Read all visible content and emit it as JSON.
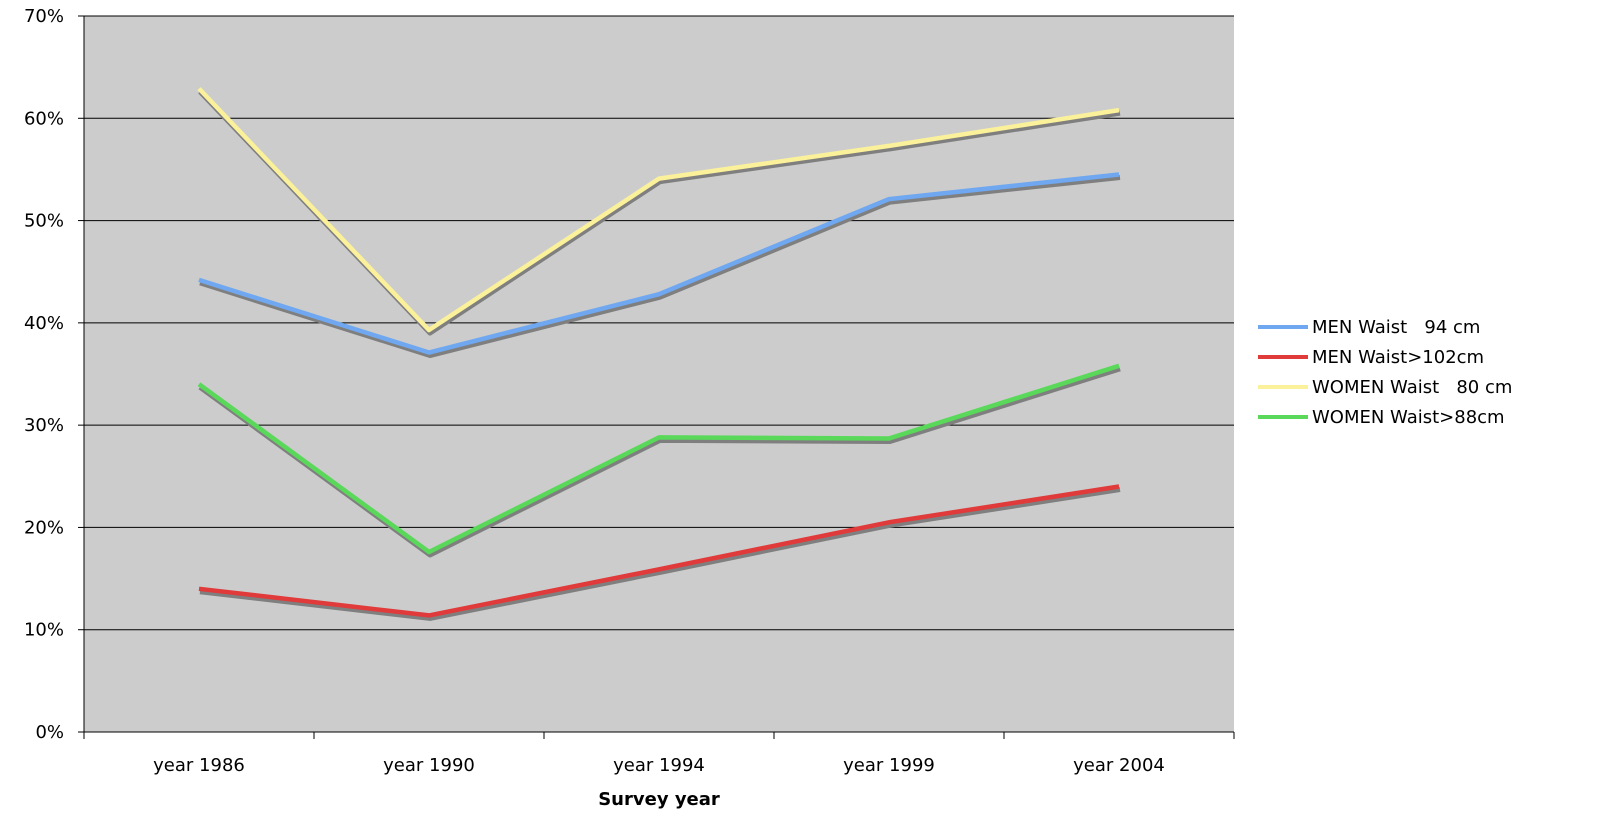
{
  "chart_data": {
    "type": "line",
    "title": "",
    "xlabel": "Survey year",
    "ylabel": "",
    "categories": [
      "year 1986",
      "year 1990",
      "year 1994",
      "year 1999",
      "year 2004"
    ],
    "ylim": [
      0,
      70
    ],
    "yticks": [
      0,
      10,
      20,
      30,
      40,
      50,
      60,
      70
    ],
    "ytick_labels": [
      "0%",
      "10%",
      "20%",
      "30%",
      "40%",
      "50%",
      "60%",
      "70%"
    ],
    "grid": true,
    "legend": "right",
    "plot_background": "#cccccc",
    "series": [
      {
        "name": "MEN Waist   94 cm",
        "color": "#6fa8f0",
        "values": [
          44.2,
          37.1,
          42.8,
          52.1,
          54.5
        ]
      },
      {
        "name": "MEN Waist>102cm",
        "color": "#e03a3a",
        "values": [
          14.0,
          11.4,
          15.9,
          20.5,
          24.0
        ]
      },
      {
        "name": "WOMEN Waist   80 cm",
        "color": "#fbf19a",
        "values": [
          62.9,
          39.3,
          54.1,
          57.3,
          60.8
        ]
      },
      {
        "name": "WOMEN Waist>88cm",
        "color": "#5ad85a",
        "values": [
          34.0,
          17.6,
          28.8,
          28.7,
          35.8
        ]
      }
    ]
  }
}
